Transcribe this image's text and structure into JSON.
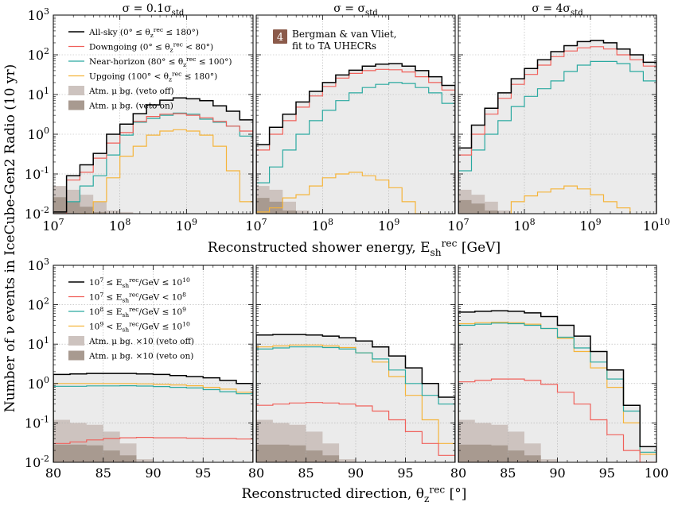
{
  "figure": {
    "ylabel": "Number of ν events in IceCube-Gen2 Radio (10 yr)",
    "xlabel_top": "Reconstructed shower energy, E_sh^rec [GeV]",
    "xlabel_bottom": "Reconstructed direction, θ_z^rec [°]",
    "panel_titles": [
      "σ = 0.1σ_std",
      "σ = σ_std",
      "σ = 4σ_std"
    ],
    "badge": {
      "number": "4",
      "line1": "Bergman & van Vliet,",
      "line2": "fit to TA UHECRs",
      "color": "#8b5a4a"
    },
    "legend_top": [
      {
        "label": "All-sky (0° ≤ θ_z^rec ≤ 180°)",
        "color": "#000000",
        "kind": "line"
      },
      {
        "label": "Downgoing (0° ≤ θ_z^rec < 80°)",
        "color": "#f0605a",
        "kind": "line"
      },
      {
        "label": "Near-horizon (80° ≤ θ_z^rec ≤ 100°)",
        "color": "#2aa9a0",
        "kind": "line"
      },
      {
        "label": "Upgoing (100° < θ_z^rec ≤ 180°)",
        "color": "#f5b43a",
        "kind": "line"
      },
      {
        "label": "Atm. μ bg. (veto off)",
        "color": "#cdc3bf",
        "kind": "patch"
      },
      {
        "label": "Atm. μ bg. (veto on)",
        "color": "#a89a90",
        "kind": "patch"
      }
    ],
    "legend_bottom": [
      {
        "label": "10^7 ≤ E_sh^rec/GeV ≤ 10^10",
        "color": "#000000",
        "kind": "line"
      },
      {
        "label": "10^7 ≤ E_sh^rec/GeV < 10^8",
        "color": "#f0605a",
        "kind": "line"
      },
      {
        "label": "10^8 ≤ E_sh^rec/GeV ≤ 10^9",
        "color": "#2aa9a0",
        "kind": "line"
      },
      {
        "label": "10^9 < E_sh^rec/GeV ≤ 10^10",
        "color": "#f5b43a",
        "kind": "line"
      },
      {
        "label": "Atm. μ bg. ×10 (veto off)",
        "color": "#cdc3bf",
        "kind": "patch"
      },
      {
        "label": "Atm. μ bg. ×10 (veto on)",
        "color": "#a89a90",
        "kind": "patch"
      }
    ],
    "colors": {
      "fill": "#ebebeb",
      "veto_off": "#cdc3bf",
      "veto_on": "#a89a90"
    }
  },
  "chart_data": [
    {
      "type": "line",
      "panel": "top-left",
      "title": "σ = 0.1σ_std",
      "xscale": "log",
      "yscale": "log",
      "xlim": [
        10000000.0,
        10000000000.0
      ],
      "ylim": [
        0.01,
        1000
      ],
      "x_edges": [
        10000000.0,
        15800000.0,
        25100000.0,
        39800000.0,
        63100000.0,
        100000000.0,
        158000000.0,
        251000000.0,
        398000000.0,
        631000000.0,
        1000000000.0,
        1580000000.0,
        2510000000.0,
        3980000000.0,
        6310000000.0,
        10000000000.0
      ],
      "series": [
        {
          "name": "All-sky",
          "color": "#000000",
          "values": [
            0.011,
            0.09,
            0.17,
            0.33,
            1.0,
            1.8,
            3.3,
            5.5,
            7.2,
            8.2,
            7.8,
            7.0,
            5.2,
            3.8,
            2.3
          ]
        },
        {
          "name": "Downgoing",
          "color": "#f0605a",
          "values": [
            0.01,
            0.07,
            0.11,
            0.25,
            0.6,
            1.1,
            2.1,
            2.8,
            3.2,
            3.3,
            3.0,
            2.6,
            2.1,
            1.6,
            1.2
          ]
        },
        {
          "name": "Near-horizon",
          "color": "#2aa9a0",
          "values": [
            0.01,
            0.02,
            0.05,
            0.09,
            0.3,
            0.95,
            2.0,
            2.5,
            3.0,
            3.4,
            3.2,
            2.4,
            2.0,
            1.6,
            0.9
          ]
        },
        {
          "name": "Upgoing",
          "color": "#f5b43a",
          "values": [
            null,
            null,
            0.01,
            0.02,
            0.08,
            0.28,
            0.5,
            0.95,
            1.2,
            1.3,
            1.2,
            0.95,
            0.5,
            0.12,
            0.02
          ]
        }
      ],
      "background_veto_off": [
        0.05,
        0.04,
        0.03,
        0.02,
        0.012,
        0.011,
        null,
        null,
        null,
        null,
        null,
        null,
        null,
        null,
        null
      ],
      "background_veto_on": [
        0.026,
        0.02,
        0.015,
        0.011,
        null,
        null,
        null,
        null,
        null,
        null,
        null,
        null,
        null,
        null,
        null
      ]
    },
    {
      "type": "line",
      "panel": "top-middle",
      "title": "σ = σ_std",
      "xscale": "log",
      "yscale": "log",
      "xlim": [
        10000000.0,
        10000000000.0
      ],
      "ylim": [
        0.01,
        1000
      ],
      "x_edges": [
        10000000.0,
        15800000.0,
        25100000.0,
        39800000.0,
        63100000.0,
        100000000.0,
        158000000.0,
        251000000.0,
        398000000.0,
        631000000.0,
        1000000000.0,
        1580000000.0,
        2510000000.0,
        3980000000.0,
        6310000000.0,
        10000000000.0
      ],
      "series": [
        {
          "name": "All-sky",
          "color": "#000000",
          "values": [
            0.55,
            1.5,
            3.2,
            6.5,
            12,
            20,
            31,
            41,
            52,
            58,
            60,
            52,
            40,
            28,
            17
          ]
        },
        {
          "name": "Downgoing",
          "color": "#f0605a",
          "values": [
            0.4,
            1.0,
            2.2,
            4.8,
            9.2,
            16,
            26,
            34,
            40,
            43,
            42,
            37,
            28,
            20,
            13
          ]
        },
        {
          "name": "Near-horizon",
          "color": "#2aa9a0",
          "values": [
            0.06,
            0.15,
            0.4,
            1.0,
            2.2,
            4.0,
            7.0,
            11,
            15,
            18,
            20,
            19,
            15,
            11,
            6.0
          ]
        },
        {
          "name": "Upgoing",
          "color": "#f5b43a",
          "values": [
            0.011,
            0.014,
            0.025,
            0.03,
            0.05,
            0.08,
            0.1,
            0.11,
            0.09,
            0.07,
            0.045,
            0.02,
            0.01,
            null,
            null
          ]
        }
      ],
      "background_veto_off": [
        0.05,
        0.04,
        0.02,
        0.012,
        null,
        null,
        null,
        null,
        null,
        null,
        null,
        null,
        null,
        null,
        null
      ],
      "background_veto_on": [
        0.025,
        0.02,
        0.012,
        null,
        null,
        null,
        null,
        null,
        null,
        null,
        null,
        null,
        null,
        null,
        null
      ]
    },
    {
      "type": "line",
      "panel": "top-right",
      "title": "σ = 4σ_std",
      "xscale": "log",
      "yscale": "log",
      "xlim": [
        10000000.0,
        10000000000.0
      ],
      "ylim": [
        0.01,
        1000
      ],
      "x_edges": [
        10000000.0,
        15800000.0,
        25100000.0,
        39800000.0,
        63100000.0,
        100000000.0,
        158000000.0,
        251000000.0,
        398000000.0,
        631000000.0,
        1000000000.0,
        1580000000.0,
        2510000000.0,
        3980000000.0,
        6310000000.0,
        10000000000.0
      ],
      "series": [
        {
          "name": "All-sky",
          "color": "#000000",
          "values": [
            0.45,
            1.7,
            4.5,
            11,
            25,
            45,
            75,
            120,
            170,
            215,
            230,
            200,
            140,
            100,
            65
          ]
        },
        {
          "name": "Downgoing",
          "color": "#f0605a",
          "values": [
            0.3,
            1.0,
            3.2,
            8,
            18,
            32,
            55,
            90,
            125,
            150,
            160,
            140,
            100,
            75,
            52
          ]
        },
        {
          "name": "Near-horizon",
          "color": "#2aa9a0",
          "values": [
            0.12,
            0.4,
            1.0,
            2.2,
            5.0,
            9.0,
            14,
            22,
            38,
            55,
            68,
            68,
            60,
            38,
            22
          ]
        },
        {
          "name": "Upgoing",
          "color": "#f5b43a",
          "values": [
            null,
            null,
            null,
            null,
            0.02,
            0.028,
            0.035,
            0.042,
            0.05,
            0.042,
            0.03,
            0.02,
            0.014,
            null,
            null
          ]
        }
      ],
      "background_veto_off": [
        0.04,
        0.03,
        0.02,
        0.012,
        null,
        null,
        null,
        null,
        null,
        null,
        null,
        null,
        null,
        null,
        null
      ],
      "background_veto_on": [
        0.022,
        0.018,
        0.012,
        null,
        null,
        null,
        null,
        null,
        null,
        null,
        null,
        null,
        null,
        null,
        null
      ]
    },
    {
      "type": "line",
      "panel": "bottom-left",
      "xscale": "linear",
      "yscale": "log",
      "xlim": [
        80,
        100
      ],
      "ylim": [
        0.01,
        1000
      ],
      "x_edges": [
        80,
        81.67,
        83.33,
        85,
        86.67,
        88.33,
        90,
        91.67,
        93.33,
        95,
        96.67,
        98.33,
        100
      ],
      "series": [
        {
          "name": "10^7–10^10 GeV",
          "color": "#000000",
          "values": [
            1.7,
            1.75,
            1.8,
            1.8,
            1.8,
            1.75,
            1.7,
            1.6,
            1.5,
            1.4,
            1.2,
            1.0
          ]
        },
        {
          "name": "10^7–10^8 GeV",
          "color": "#f0605a",
          "values": [
            0.03,
            0.033,
            0.037,
            0.04,
            0.042,
            0.043,
            0.042,
            0.042,
            0.041,
            0.04,
            0.04,
            0.039
          ]
        },
        {
          "name": "10^8–10^9 GeV",
          "color": "#2aa9a0",
          "values": [
            0.85,
            0.85,
            0.87,
            0.87,
            0.88,
            0.86,
            0.84,
            0.8,
            0.77,
            0.7,
            0.62,
            0.55
          ]
        },
        {
          "name": "10^9–10^10 GeV",
          "color": "#f5b43a",
          "values": [
            1.0,
            1.0,
            1.0,
            1.0,
            1.0,
            0.98,
            0.95,
            0.92,
            0.88,
            0.8,
            0.72,
            0.6
          ]
        }
      ],
      "background_veto_off": [
        0.12,
        0.1,
        0.09,
        0.06,
        0.03,
        0.012,
        null,
        null,
        null,
        null,
        null,
        null
      ],
      "background_veto_on": [
        0.028,
        0.028,
        0.027,
        0.02,
        0.015,
        null,
        null,
        null,
        null,
        null,
        null,
        null
      ]
    },
    {
      "type": "line",
      "panel": "bottom-middle",
      "xscale": "linear",
      "yscale": "log",
      "xlim": [
        80,
        100
      ],
      "ylim": [
        0.01,
        1000
      ],
      "x_edges": [
        80,
        81.67,
        83.33,
        85,
        86.67,
        88.33,
        90,
        91.67,
        93.33,
        95,
        96.67,
        98.33,
        100
      ],
      "series": [
        {
          "name": "10^7–10^10 GeV",
          "color": "#000000",
          "values": [
            17,
            17.5,
            17.5,
            17,
            16,
            14.5,
            12,
            8.5,
            5.0,
            2.5,
            1.0,
            0.45
          ]
        },
        {
          "name": "10^7–10^8 GeV",
          "color": "#f0605a",
          "values": [
            0.28,
            0.3,
            0.32,
            0.33,
            0.32,
            0.3,
            0.27,
            0.2,
            0.12,
            0.06,
            0.03,
            0.015
          ]
        },
        {
          "name": "10^8–10^9 GeV",
          "color": "#2aa9a0",
          "values": [
            7.5,
            8.0,
            8.5,
            8.5,
            8.2,
            7.5,
            6.0,
            4.2,
            2.2,
            1.0,
            0.5,
            0.3
          ]
        },
        {
          "name": "10^9–10^10 GeV",
          "color": "#f5b43a",
          "values": [
            8.5,
            9.0,
            9.5,
            9.5,
            9.0,
            8.2,
            6.0,
            3.5,
            1.5,
            0.5,
            0.12,
            0.03
          ]
        }
      ],
      "background_veto_off": [
        0.12,
        0.1,
        0.09,
        0.06,
        0.03,
        0.012,
        null,
        null,
        null,
        null,
        null,
        null
      ],
      "background_veto_on": [
        0.028,
        0.028,
        0.027,
        0.02,
        0.015,
        null,
        null,
        null,
        null,
        null,
        null,
        null
      ]
    },
    {
      "type": "line",
      "panel": "bottom-right",
      "xscale": "linear",
      "yscale": "log",
      "xlim": [
        80,
        100
      ],
      "ylim": [
        0.01,
        1000
      ],
      "x_edges": [
        80,
        81.67,
        83.33,
        85,
        86.67,
        88.33,
        90,
        91.67,
        93.33,
        95,
        96.67,
        98.33,
        100
      ],
      "series": [
        {
          "name": "10^7–10^10 GeV",
          "color": "#000000",
          "values": [
            65,
            68,
            70,
            68,
            62,
            50,
            30,
            16,
            6.5,
            2.2,
            0.28,
            0.025
          ]
        },
        {
          "name": "10^7–10^8 GeV",
          "color": "#f0605a",
          "values": [
            1.1,
            1.2,
            1.3,
            1.3,
            1.2,
            0.95,
            0.6,
            0.3,
            0.12,
            0.05,
            0.02,
            0.01
          ]
        },
        {
          "name": "10^8–10^9 GeV",
          "color": "#2aa9a0",
          "values": [
            30,
            32,
            34,
            33,
            30,
            25,
            15,
            8.0,
            3.5,
            1.3,
            0.2,
            0.018
          ]
        },
        {
          "name": "10^9–10^10 GeV",
          "color": "#f5b43a",
          "values": [
            33,
            35,
            36,
            35,
            32,
            25,
            14,
            6.5,
            2.5,
            0.8,
            0.1,
            0.016
          ]
        }
      ],
      "background_veto_off": [
        0.12,
        0.1,
        0.09,
        0.06,
        0.03,
        0.012,
        null,
        null,
        null,
        null,
        null,
        null
      ],
      "background_veto_on": [
        0.028,
        0.028,
        0.027,
        0.02,
        0.015,
        null,
        null,
        null,
        null,
        null,
        null,
        null
      ]
    }
  ]
}
